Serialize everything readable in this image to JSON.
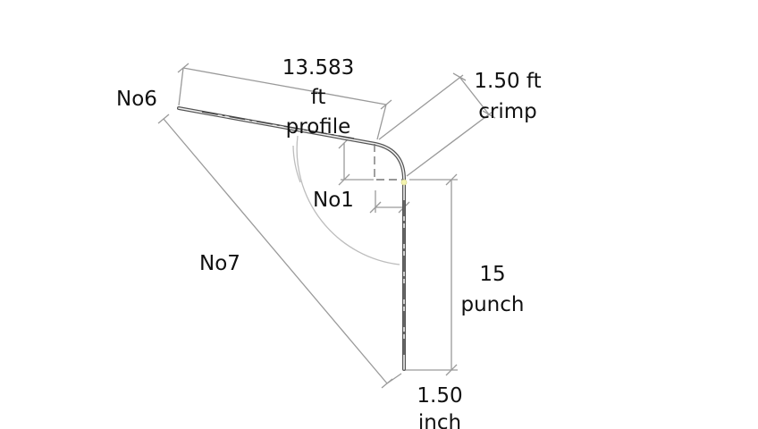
{
  "dimensions": {
    "profile": {
      "value": "13.583",
      "unit": "ft",
      "name": "profile"
    },
    "crimp": {
      "value_unit": "1.50 ft",
      "name": "crimp"
    },
    "punch": {
      "value": "15",
      "name": "punch"
    },
    "end_length": {
      "value": "1.50",
      "unit": "inch"
    }
  },
  "labels": {
    "no6": "No6",
    "no1": "No1",
    "no7": "No7"
  },
  "colors": {
    "dimension_line": "#9a9a9a",
    "part_outline": "#555555",
    "text": "#111111",
    "marker": "#f4f4b0"
  }
}
